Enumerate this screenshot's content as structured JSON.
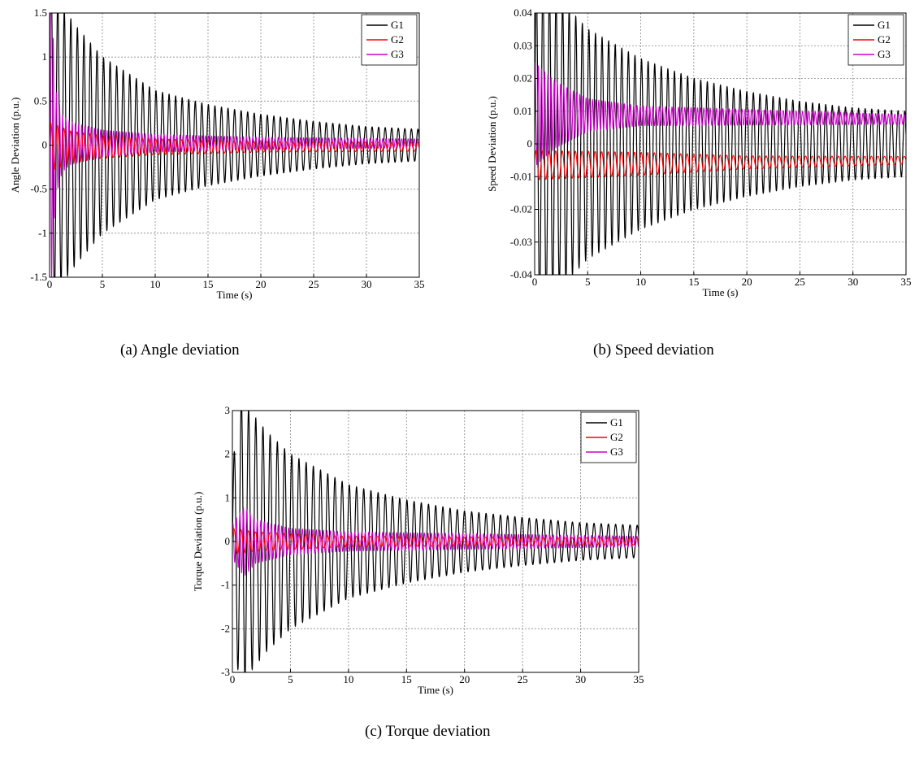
{
  "chart_data": [
    {
      "type": "line",
      "caption": "(a) Angle deviation",
      "xlabel": "Time (s)",
      "ylabel": "Angle Deviation (p.u.)",
      "xlim": [
        0,
        35
      ],
      "ylim": [
        -1.5,
        1.5
      ],
      "xticks": [
        0,
        5,
        10,
        15,
        20,
        25,
        30,
        35
      ],
      "yticks": [
        -1.5,
        -1,
        -0.5,
        0,
        0.5,
        1,
        1.5
      ],
      "xtick_labels": [
        "0",
        "5",
        "10",
        "15",
        "20",
        "25",
        "30",
        "35"
      ],
      "ytick_labels": [
        "-1.5",
        "-1",
        "-0.5",
        "0",
        "0.5",
        "1",
        "1.5"
      ],
      "grid": true,
      "legend_position": "top-right",
      "series": [
        {
          "name": "G1",
          "color": "#000000",
          "offset": 0.0,
          "envelope": [
            [
              0,
              2.0
            ],
            [
              0.5,
              1.7
            ],
            [
              1,
              1.6
            ],
            [
              2.5,
              1.35
            ],
            [
              5,
              1.0
            ],
            [
              10,
              0.62
            ],
            [
              15,
              0.46
            ],
            [
              20,
              0.35
            ],
            [
              25,
              0.27
            ],
            [
              30,
              0.21
            ],
            [
              35,
              0.18
            ]
          ],
          "period": 0.62,
          "width": 1.2
        },
        {
          "name": "G2",
          "color": "#ff0000",
          "offset": -0.02,
          "envelope": [
            [
              0,
              0.28
            ],
            [
              2,
              0.18
            ],
            [
              5,
              0.13
            ],
            [
              10,
              0.09
            ],
            [
              20,
              0.06
            ],
            [
              35,
              0.05
            ]
          ],
          "period": 0.62,
          "width": 1.0
        },
        {
          "name": "G3",
          "color": "#cc00cc",
          "offset": 0.02,
          "envelope": [
            [
              0,
              2.0
            ],
            [
              0.6,
              0.6
            ],
            [
              1.2,
              0.32
            ],
            [
              2,
              0.24
            ],
            [
              5,
              0.15
            ],
            [
              10,
              0.1
            ],
            [
              20,
              0.07
            ],
            [
              35,
              0.05
            ]
          ],
          "period": 0.3,
          "width": 1.0
        }
      ]
    },
    {
      "type": "line",
      "caption": "(b) Speed deviation",
      "xlabel": "Time (s)",
      "ylabel": "Speed Deviation (p.u.)",
      "xlim": [
        0,
        35
      ],
      "ylim": [
        -0.04,
        0.04
      ],
      "xticks": [
        0,
        5,
        10,
        15,
        20,
        25,
        30,
        35
      ],
      "yticks": [
        -0.04,
        -0.03,
        -0.02,
        -0.01,
        0,
        0.01,
        0.02,
        0.03,
        0.04
      ],
      "xtick_labels": [
        "0",
        "5",
        "10",
        "15",
        "20",
        "25",
        "30",
        "35"
      ],
      "ytick_labels": [
        "-0.04",
        "-0.03",
        "-0.02",
        "-0.01",
        "0",
        "0.01",
        "0.02",
        "0.03",
        "0.04"
      ],
      "grid": true,
      "legend_position": "top-right",
      "series": [
        {
          "name": "G1",
          "color": "#000000",
          "offset": 0.0,
          "envelope": [
            [
              0,
              0.05
            ],
            [
              1,
              0.048
            ],
            [
              3,
              0.042
            ],
            [
              5,
              0.035
            ],
            [
              10,
              0.026
            ],
            [
              15,
              0.02
            ],
            [
              20,
              0.016
            ],
            [
              25,
              0.013
            ],
            [
              30,
              0.011
            ],
            [
              35,
              0.01
            ]
          ],
          "period": 0.62,
          "width": 1.2
        },
        {
          "name": "G2",
          "color": "#ff0000",
          "offset": -0.0065,
          "envelope": [
            [
              0,
              0.0045
            ],
            [
              10,
              0.0035
            ],
            [
              20,
              0.002
            ],
            [
              35,
              0.0012
            ]
          ],
          "period": 0.62,
          "width": 1.0,
          "offset_end": -0.005
        },
        {
          "name": "G3",
          "color": "#cc00cc",
          "offset": 0.009,
          "envelope": [
            [
              0,
              0.016
            ],
            [
              2,
              0.01
            ],
            [
              5,
              0.005
            ],
            [
              10,
              0.003
            ],
            [
              35,
              0.0015
            ]
          ],
          "period": 0.3,
          "width": 1.0,
          "offset_end": 0.0075
        }
      ]
    },
    {
      "type": "line",
      "caption": "(c) Torque deviation",
      "xlabel": "Time (s)",
      "ylabel": "Torque Deviation (p.u.)",
      "xlim": [
        0,
        35
      ],
      "ylim": [
        -3,
        3
      ],
      "xticks": [
        0,
        5,
        10,
        15,
        20,
        25,
        30,
        35
      ],
      "yticks": [
        -3,
        -2,
        -1,
        0,
        1,
        2,
        3
      ],
      "xtick_labels": [
        "0",
        "5",
        "10",
        "15",
        "20",
        "25",
        "30",
        "35"
      ],
      "ytick_labels": [
        "-3",
        "-2",
        "-1",
        "0",
        "1",
        "2",
        "3"
      ],
      "grid": true,
      "legend_position": "top-right",
      "series": [
        {
          "name": "G1",
          "color": "#000000",
          "offset": 0.0,
          "envelope": [
            [
              0,
              1.6
            ],
            [
              0.6,
              3.3
            ],
            [
              1.2,
              3.1
            ],
            [
              3,
              2.5
            ],
            [
              5,
              2.0
            ],
            [
              10,
              1.3
            ],
            [
              15,
              0.95
            ],
            [
              20,
              0.7
            ],
            [
              25,
              0.55
            ],
            [
              30,
              0.43
            ],
            [
              35,
              0.37
            ]
          ],
          "period": 0.62,
          "width": 1.2
        },
        {
          "name": "G2",
          "color": "#ff0000",
          "offset": 0.0,
          "envelope": [
            [
              0,
              0.3
            ],
            [
              2,
              0.22
            ],
            [
              10,
              0.12
            ],
            [
              35,
              0.08
            ]
          ],
          "period": 0.62,
          "width": 1.0
        },
        {
          "name": "G3",
          "color": "#cc00cc",
          "offset": 0.0,
          "envelope": [
            [
              0,
              0.4
            ],
            [
              1,
              0.8
            ],
            [
              2,
              0.5
            ],
            [
              5,
              0.3
            ],
            [
              10,
              0.22
            ],
            [
              35,
              0.12
            ]
          ],
          "period": 0.3,
          "width": 1.0
        }
      ]
    }
  ]
}
